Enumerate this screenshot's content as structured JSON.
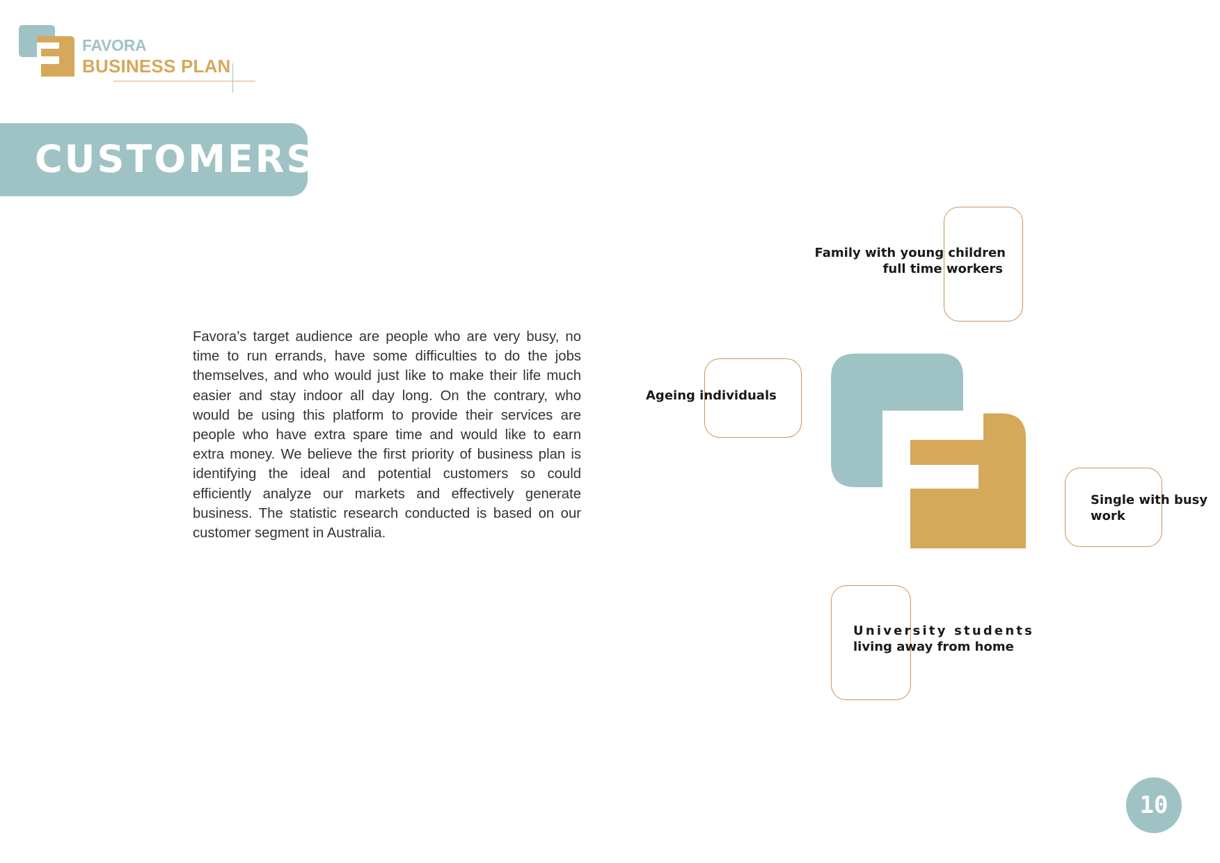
{
  "header": {
    "brand_name": "FAVORA",
    "brand_subtitle": "BUSINESS PLAN",
    "logo_icon": "favora-logo-icon"
  },
  "section": {
    "title": "CUSTOMERS"
  },
  "body": {
    "paragraph": "Favora’s target audience are people who are very busy, no time to run errands, have some difficulties to do the jobs themselves, and who would just like to make their life much easier and stay indoor all day long. On the contrary, who would be using this platform to provide their services are people who have extra spare time and would like to earn extra money. We believe the first priority of business plan is identifying the ideal and potential customers so could efficiently analyze our markets and effectively generate business. The statistic research conducted is based on our customer segment in Australia."
  },
  "segments": {
    "family": {
      "line1": "Family with young children",
      "line2": "full time workers"
    },
    "ageing": {
      "line1": "Ageing individuals"
    },
    "single": {
      "line1": "Single with busy",
      "line2": "work"
    },
    "students": {
      "line1": "University students",
      "line2": "living away from home"
    }
  },
  "footer": {
    "page_number": "10"
  },
  "colors": {
    "teal": "#9fc3c5",
    "gold": "#d6a85a",
    "outline": "#c8955a",
    "text": "#333333"
  }
}
